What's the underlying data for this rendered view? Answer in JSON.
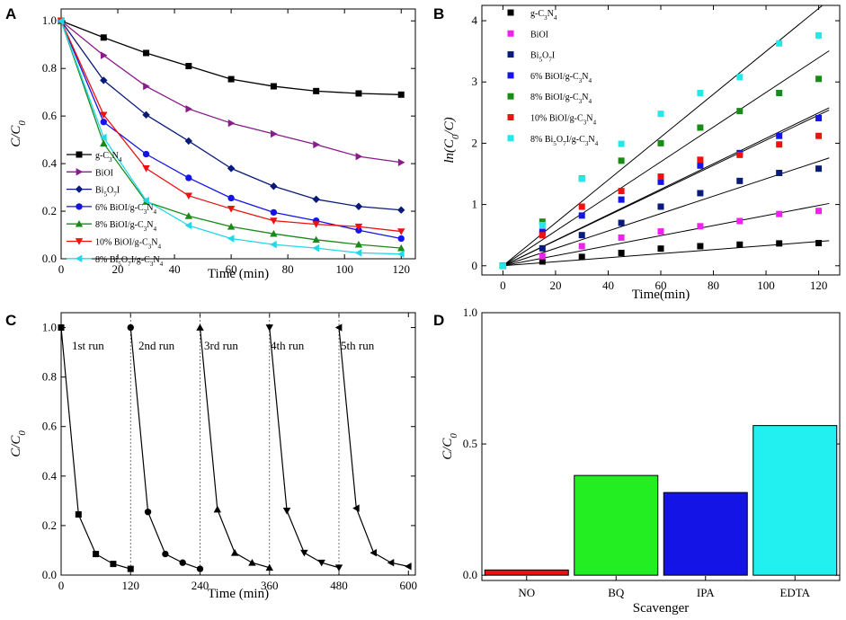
{
  "chart_data": [
    {
      "panel": "A",
      "type": "line",
      "xlabel": "Time (min)",
      "ylabel": "C/C",
      "ylabel_sub": "0",
      "xlim": [
        0,
        125
      ],
      "ylim": [
        0,
        1.05
      ],
      "xticks": [
        0,
        20,
        40,
        60,
        80,
        100,
        120
      ],
      "yticks": [
        0.0,
        0.2,
        0.4,
        0.6,
        0.8,
        1.0
      ],
      "legend_position": "left",
      "x": [
        0,
        15,
        30,
        45,
        60,
        75,
        90,
        105,
        120
      ],
      "series": [
        {
          "name": "g-C3N4",
          "label_main": "g-C",
          "label_rest": [
            [
              "3",
              "sub"
            ],
            [
              "N",
              ""
            ],
            [
              "4",
              "sub"
            ]
          ],
          "color": "#000000",
          "marker": "square",
          "values": [
            1.0,
            0.93,
            0.865,
            0.81,
            0.755,
            0.725,
            0.705,
            0.695,
            0.69
          ]
        },
        {
          "name": "BiOI",
          "label_main": "BiOI",
          "label_rest": [],
          "color": "#8b1a8b",
          "marker": "triangle-right",
          "values": [
            1.0,
            0.855,
            0.725,
            0.63,
            0.57,
            0.525,
            0.48,
            0.43,
            0.405
          ]
        },
        {
          "name": "Bi5O7I",
          "label_main": "Bi",
          "label_rest": [
            [
              "5",
              "sub"
            ],
            [
              "O",
              ""
            ],
            [
              "7",
              "sub"
            ],
            [
              "I",
              ""
            ]
          ],
          "color": "#0a1a78",
          "marker": "diamond",
          "values": [
            1.0,
            0.75,
            0.605,
            0.495,
            0.38,
            0.305,
            0.25,
            0.22,
            0.205
          ]
        },
        {
          "name": "6% BiOI/g-C3N4",
          "label_main": "6% BiOI/g-C",
          "label_rest": [
            [
              "3",
              "sub"
            ],
            [
              "N",
              ""
            ],
            [
              "4",
              "sub"
            ]
          ],
          "color": "#1414e6",
          "marker": "circle",
          "values": [
            1.0,
            0.575,
            0.44,
            0.34,
            0.255,
            0.195,
            0.16,
            0.12,
            0.085
          ]
        },
        {
          "name": "8% BiOI/g-C3N4",
          "label_main": "8% BiOI/g-C",
          "label_rest": [
            [
              "3",
              "sub"
            ],
            [
              "N",
              ""
            ],
            [
              "4",
              "sub"
            ]
          ],
          "color": "#1a8a1a",
          "marker": "triangle-up",
          "values": [
            1.0,
            0.485,
            0.24,
            0.18,
            0.135,
            0.105,
            0.08,
            0.06,
            0.045
          ]
        },
        {
          "name": "10% BiOI/g-C3N4",
          "label_main": "10% BiOI/g-C",
          "label_rest": [
            [
              "3",
              "sub"
            ],
            [
              "N",
              ""
            ],
            [
              "4",
              "sub"
            ]
          ],
          "color": "#ee1111",
          "marker": "triangle-down",
          "values": [
            1.0,
            0.605,
            0.38,
            0.265,
            0.21,
            0.16,
            0.145,
            0.135,
            0.115
          ]
        },
        {
          "name": "8% Bi5O7I/g-C3N4",
          "label_main": "8% Bi",
          "label_rest": [
            [
              "5",
              "sub"
            ],
            [
              "O",
              ""
            ],
            [
              "7",
              "sub"
            ],
            [
              "I/g-C",
              ""
            ],
            [
              "3",
              "sub"
            ],
            [
              "N",
              ""
            ],
            [
              "4",
              "sub"
            ]
          ],
          "color": "#22d8e8",
          "marker": "triangle-left",
          "values": [
            1.0,
            0.51,
            0.245,
            0.14,
            0.085,
            0.06,
            0.045,
            0.025,
            0.02
          ]
        }
      ]
    },
    {
      "panel": "B",
      "type": "scatter",
      "xlabel": "Time(min)",
      "ylabel": "ln(C",
      "ylabel_sub": "0",
      "ylabel_tail": "/C)",
      "xlim": [
        -8,
        128
      ],
      "ylim": [
        -0.15,
        4.25
      ],
      "xticks": [
        0,
        20,
        40,
        60,
        80,
        100,
        120
      ],
      "yticks": [
        0,
        1,
        2,
        3,
        4
      ],
      "legend_position": "top-left",
      "fit_lines": true,
      "x": [
        0,
        15,
        30,
        45,
        60,
        75,
        90,
        105,
        120
      ],
      "series": [
        {
          "name": "g-C3N4",
          "label_main": "g-C",
          "label_rest": [
            [
              "3",
              "sub"
            ],
            [
              "N",
              ""
            ],
            [
              "4",
              "sub"
            ]
          ],
          "color": "#000000",
          "marker": "square",
          "slope": 0.0033,
          "values": [
            0,
            0.07,
            0.145,
            0.21,
            0.28,
            0.32,
            0.345,
            0.365,
            0.37
          ]
        },
        {
          "name": "BiOI",
          "label_main": "BiOI",
          "label_rest": [],
          "color": "#ee22ee",
          "marker": "square",
          "slope": 0.0082,
          "values": [
            0,
            0.155,
            0.32,
            0.46,
            0.56,
            0.645,
            0.73,
            0.845,
            0.895
          ]
        },
        {
          "name": "Bi5O7I",
          "label_main": "Bi",
          "label_rest": [
            [
              "5",
              "sub"
            ],
            [
              "O",
              ""
            ],
            [
              "7",
              "sub"
            ],
            [
              "I",
              ""
            ]
          ],
          "color": "#0a1a78",
          "marker": "square",
          "slope": 0.0142,
          "values": [
            0,
            0.285,
            0.5,
            0.7,
            0.965,
            1.185,
            1.385,
            1.515,
            1.585
          ]
        },
        {
          "name": "6% BiOI/g-C3N4",
          "label_main": "6% BiOI/g-C",
          "label_rest": [
            [
              "3",
              "sub"
            ],
            [
              "N",
              ""
            ],
            [
              "4",
              "sub"
            ]
          ],
          "color": "#1414e6",
          "marker": "square",
          "slope": 0.0205,
          "values": [
            0,
            0.555,
            0.82,
            1.08,
            1.37,
            1.635,
            1.84,
            2.12,
            2.41
          ]
        },
        {
          "name": "8% BiOI/g-C3N4",
          "label_main": "8% BiOI/g-C",
          "label_rest": [
            [
              "3",
              "sub"
            ],
            [
              "N",
              ""
            ],
            [
              "4",
              "sub"
            ]
          ],
          "color": "#1a8a1a",
          "marker": "square",
          "slope": 0.0283,
          "values": [
            0,
            0.72,
            1.425,
            1.715,
            2.0,
            2.255,
            2.525,
            2.82,
            3.05
          ]
        },
        {
          "name": "10% BiOI/g-C3N4",
          "label_main": "10% BiOI/g-C",
          "label_rest": [
            [
              "3",
              "sub"
            ],
            [
              "N",
              ""
            ],
            [
              "4",
              "sub"
            ]
          ],
          "color": "#ee1111",
          "marker": "square",
          "slope": 0.0208,
          "values": [
            0,
            0.5,
            0.965,
            1.22,
            1.455,
            1.73,
            1.81,
            1.98,
            2.12
          ]
        },
        {
          "name": "8% Bi5O7I/g-C3N4",
          "label_main": "8% Bi",
          "label_rest": [
            [
              "5",
              "sub"
            ],
            [
              "O",
              ""
            ],
            [
              "7",
              "sub"
            ],
            [
              "I/g-C",
              ""
            ],
            [
              "3",
              "sub"
            ],
            [
              "N",
              ""
            ],
            [
              "4",
              "sub"
            ]
          ],
          "color": "#22e8e8",
          "marker": "square",
          "slope": 0.035,
          "values": [
            0,
            0.665,
            1.42,
            1.99,
            2.48,
            2.82,
            3.08,
            3.63,
            3.76
          ]
        }
      ]
    },
    {
      "panel": "C",
      "type": "line",
      "xlabel": "Time (min)",
      "ylabel": "C/C",
      "ylabel_sub": "0",
      "xlim": [
        0,
        612
      ],
      "ylim": [
        0,
        1.06
      ],
      "xticks": [
        0,
        120,
        240,
        360,
        480,
        600
      ],
      "yticks": [
        0.0,
        0.2,
        0.4,
        0.6,
        0.8,
        1.0
      ],
      "dividers": [
        120,
        240,
        360,
        480
      ],
      "run_labels": [
        "1st run",
        "2nd run",
        "3rd run",
        "4th run",
        "5th run"
      ],
      "runs": [
        {
          "name": "1st run",
          "marker": "square",
          "x": [
            0,
            30,
            60,
            90,
            120
          ],
          "values": [
            1.0,
            0.245,
            0.085,
            0.045,
            0.025
          ]
        },
        {
          "name": "2nd run",
          "marker": "circle",
          "x": [
            120,
            150,
            180,
            210,
            240
          ],
          "values": [
            1.0,
            0.255,
            0.085,
            0.05,
            0.025
          ]
        },
        {
          "name": "3rd run",
          "marker": "triangle-up",
          "x": [
            240,
            270,
            300,
            330,
            360
          ],
          "values": [
            1.0,
            0.265,
            0.09,
            0.05,
            0.03
          ]
        },
        {
          "name": "4th run",
          "marker": "triangle-down",
          "x": [
            360,
            390,
            420,
            450,
            480
          ],
          "values": [
            1.0,
            0.26,
            0.09,
            0.05,
            0.03
          ]
        },
        {
          "name": "5th run",
          "marker": "triangle-left",
          "x": [
            480,
            510,
            540,
            570,
            600
          ],
          "values": [
            1.0,
            0.27,
            0.09,
            0.05,
            0.035
          ]
        }
      ]
    },
    {
      "panel": "D",
      "type": "bar",
      "xlabel": "Scavenger",
      "ylabel": "C/C",
      "ylabel_sub": "0",
      "ylim": [
        -0.02,
        1.0
      ],
      "yticks": [
        0.0,
        0.5,
        1.0
      ],
      "categories": [
        "NO",
        "BQ",
        "IPA",
        "EDTA"
      ],
      "values": [
        0.02,
        0.38,
        0.315,
        0.57
      ],
      "colors": [
        "#ee1111",
        "#22ee22",
        "#1414e6",
        "#22f0f0"
      ]
    }
  ]
}
